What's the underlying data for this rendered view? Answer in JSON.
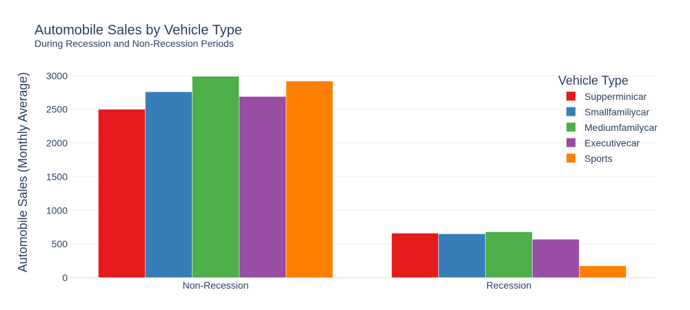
{
  "chart_data": {
    "type": "bar",
    "title": "Automobile Sales by Vehicle Type",
    "subtitle": "During Recession and Non-Recession Periods",
    "xlabel": "",
    "ylabel": "Automobile Sales (Monthly Average)",
    "categories": [
      "Non-Recession",
      "Recession"
    ],
    "ylim": [
      0,
      3100
    ],
    "yticks": [
      0,
      500,
      1000,
      1500,
      2000,
      2500,
      3000
    ],
    "grid": true,
    "legend": {
      "title": "Vehicle Type",
      "placement": "top-right"
    },
    "series": [
      {
        "name": "Supperminicar",
        "color": "#e41a1c",
        "values": [
          2500,
          660
        ]
      },
      {
        "name": "Smallfamiliycar",
        "color": "#377eb8",
        "values": [
          2760,
          650
        ]
      },
      {
        "name": "Mediumfamilycar",
        "color": "#4daf4a",
        "values": [
          2990,
          680
        ]
      },
      {
        "name": "Executivecar",
        "color": "#984ea3",
        "values": [
          2690,
          570
        ]
      },
      {
        "name": "Sports",
        "color": "#ff7f00",
        "values": [
          2920,
          175
        ]
      }
    ]
  }
}
